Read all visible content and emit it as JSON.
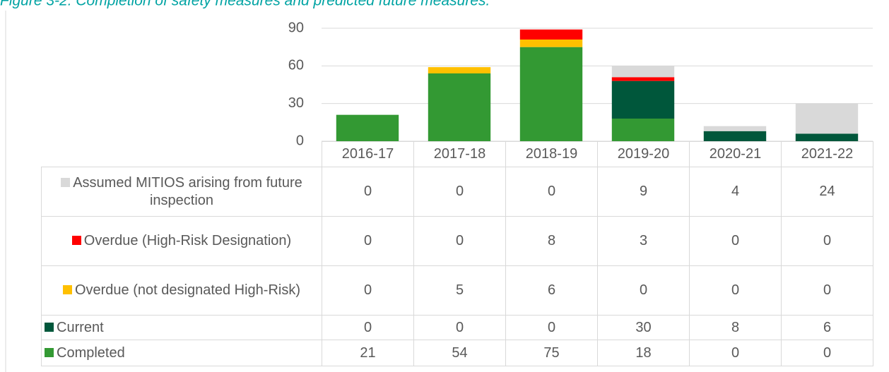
{
  "chart_data": {
    "type": "stacked_bar",
    "title": "Figure 3-2: Completion of safety measures and predicted future measures.",
    "categories": [
      "2016-17",
      "2017-18",
      "2018-19",
      "2019-20",
      "2020-21",
      "2021-22"
    ],
    "series": [
      {
        "name": "Completed",
        "color": "#339933",
        "values": [
          21,
          54,
          75,
          18,
          0,
          0
        ]
      },
      {
        "name": "Current",
        "color": "#00573b",
        "values": [
          0,
          0,
          0,
          30,
          8,
          6
        ]
      },
      {
        "name": "Overdue (not designated High-Risk)",
        "color": "#ffc000",
        "values": [
          0,
          5,
          6,
          0,
          0,
          0
        ]
      },
      {
        "name": "Overdue (High-Risk Designation)",
        "color": "#ff0000",
        "values": [
          0,
          0,
          8,
          3,
          0,
          0
        ]
      },
      {
        "name": "Assumed MITIOS arising from future inspection",
        "color": "#d9d9d9",
        "values": [
          0,
          0,
          0,
          9,
          4,
          24
        ]
      }
    ],
    "ylim": [
      0,
      90
    ],
    "yticks": [
      0,
      30,
      60,
      90
    ],
    "grid": true
  }
}
